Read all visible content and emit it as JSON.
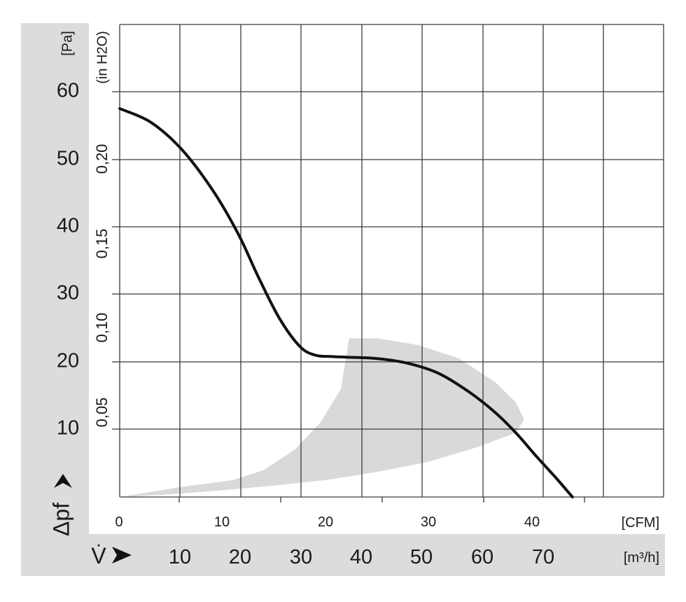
{
  "chart_data": {
    "type": "line",
    "title": "",
    "x_axes": {
      "primary": {
        "unit_label": "[CFM]",
        "ticks": [
          "0",
          "10",
          "20",
          "30",
          "40"
        ],
        "range": [
          0,
          53
        ]
      },
      "secondary": {
        "label": "V̇",
        "unit_label": "[m³/h]",
        "ticks": [
          "10",
          "20",
          "30",
          "40",
          "50",
          "60",
          "70"
        ]
      }
    },
    "y_axes": {
      "primary": {
        "label": "Δpf",
        "unit_label": "[Pa]",
        "ticks": [
          "10",
          "20",
          "30",
          "40",
          "50",
          "60"
        ],
        "range": [
          0,
          70
        ]
      },
      "secondary": {
        "unit_label": "(in H2O)",
        "ticks": [
          "0,05",
          "0,10",
          "0,15",
          "0,20"
        ]
      }
    },
    "grid": true,
    "series": [
      {
        "kind": "fan-curve",
        "color": "#111111",
        "x": [
          0,
          3,
          6,
          9,
          11.5,
          13.5,
          15.5,
          17.5,
          19,
          20.5,
          22,
          25,
          28,
          31,
          34,
          36.5,
          38.5,
          40.5,
          42.3,
          44
        ],
        "y": [
          57.5,
          55.5,
          51.5,
          45.5,
          39,
          32.5,
          26.5,
          22.3,
          21,
          20.8,
          20.7,
          20.5,
          19.8,
          18.3,
          15.5,
          12.5,
          9.5,
          6,
          3,
          0
        ]
      }
    ],
    "operating_region": {
      "color": "#d9d9d9",
      "x": [
        0,
        6,
        11,
        14,
        17,
        19.5,
        21.5,
        22.3,
        25,
        29,
        33,
        36.5,
        38.5,
        39.3,
        38.5,
        35,
        30,
        25,
        20,
        15,
        10,
        5,
        1.5,
        0
      ],
      "y": [
        0,
        1.5,
        2.5,
        4,
        7,
        11,
        16,
        23.5,
        23.5,
        22.5,
        20.5,
        17,
        14,
        11.5,
        9.5,
        7.5,
        5.2,
        3.7,
        2.5,
        1.7,
        1,
        0.4,
        0.1,
        0
      ]
    }
  },
  "colors": {
    "panel_gray": "#dcdcdc",
    "curve": "#111111",
    "grid": "#3a3a3a"
  }
}
